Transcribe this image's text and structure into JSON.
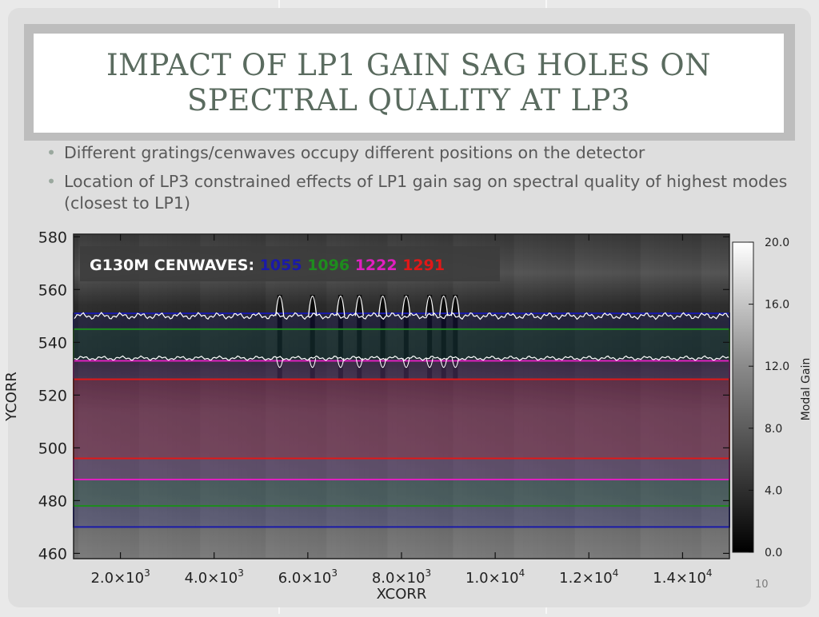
{
  "slide": {
    "title": "IMPACT OF LP1 GAIN SAG HOLES ON\nSPECTRAL QUALITY AT LP3",
    "bullets": [
      "Different gratings/cenwaves occupy different positions on the detector",
      "Location of LP3 constrained effects of LP1 gain sag on spectral quality of highest modes (closest to LP1)"
    ],
    "page_number": "10"
  },
  "chart_data": {
    "type": "heatmap",
    "title": "",
    "xlabel": "XCORR",
    "ylabel": "YCORR",
    "xlim": [
      1000,
      15000
    ],
    "ylim": [
      458,
      581
    ],
    "x_ticks": [
      2000,
      4000,
      6000,
      8000,
      10000,
      12000,
      14000
    ],
    "x_tick_labels": [
      {
        "mant": "2.0×10",
        "exp": "3"
      },
      {
        "mant": "4.0×10",
        "exp": "3"
      },
      {
        "mant": "6.0×10",
        "exp": "3"
      },
      {
        "mant": "8.0×10",
        "exp": "3"
      },
      {
        "mant": "1.0×10",
        "exp": "4"
      },
      {
        "mant": "1.2×10",
        "exp": "4"
      },
      {
        "mant": "1.4×10",
        "exp": "4"
      }
    ],
    "y_ticks": [
      460,
      480,
      500,
      520,
      540,
      560,
      580
    ],
    "y_tick_labels": [
      "460",
      "480",
      "500",
      "520",
      "540",
      "560",
      "580"
    ],
    "colorbar": {
      "label": "Modal Gain",
      "range": [
        0,
        20
      ],
      "ticks": [
        0,
        4,
        8,
        12,
        16,
        20
      ],
      "tick_labels": [
        "0.0",
        "4.0",
        "8.0",
        "12.0",
        "16.0",
        "20.0"
      ],
      "colormap": "grayscale"
    },
    "annotation": {
      "prefix": "G130M CENWAVES:",
      "cenwaves": [
        {
          "label": "1055",
          "color": "#1a1aa8"
        },
        {
          "label": "1096",
          "color": "#1e8c1e"
        },
        {
          "label": "1222",
          "color": "#e020c0"
        },
        {
          "label": "1291",
          "color": "#e01818"
        }
      ]
    },
    "regions": [
      {
        "label": "1055",
        "color": "#1a1aa8",
        "y_min": 470,
        "y_max": 551
      },
      {
        "label": "1096",
        "color": "#1e8c1e",
        "y_min": 478,
        "y_max": 545
      },
      {
        "label": "1222",
        "color": "#e020c0",
        "y_min": 488,
        "y_max": 533
      },
      {
        "label": "1291",
        "color": "#e01818",
        "y_min": 496,
        "y_max": 526
      }
    ],
    "gain_sag_holes_x": [
      5400,
      6100,
      6700,
      7100,
      7600,
      8100,
      8600,
      8900,
      9150
    ]
  }
}
